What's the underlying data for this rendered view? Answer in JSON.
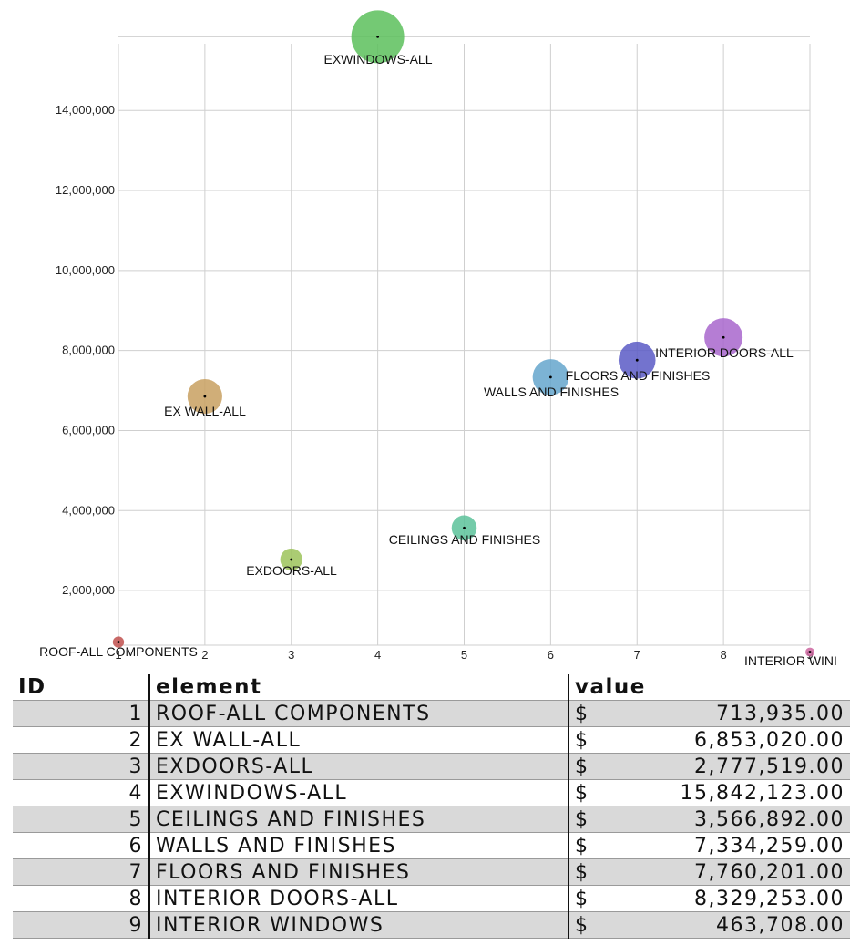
{
  "chart_data": {
    "type": "bubble",
    "x": [
      1,
      2,
      3,
      4,
      5,
      6,
      7,
      8,
      9
    ],
    "y": [
      713935,
      6853020,
      2777519,
      15842123,
      3566892,
      7334259,
      7760201,
      8329253,
      463708
    ],
    "point_labels": [
      "ROOF-ALL COMPONENTS",
      "EX WALL-ALL",
      "EXDOORS-ALL",
      "EXWINDOWS-ALL",
      "CEILINGS AND FINISHES",
      "WALLS AND FINISHES",
      "FLOORS AND FINISHES",
      "INTERIOR DOORS-ALL",
      "INTERIOR WINI"
    ],
    "colors": [
      "#c0504d",
      "#c8a060",
      "#9cc35a",
      "#5cbf5c",
      "#5cc29a",
      "#65a6cc",
      "#5a5ac6",
      "#a866cc",
      "#cc66a0"
    ],
    "xlim": [
      1,
      9
    ],
    "ylim": [
      636000,
      15850000
    ],
    "x_ticks": [
      1,
      2,
      3,
      4,
      5,
      6,
      7,
      8,
      9
    ],
    "x_tick_labels": [
      "1",
      "2",
      "3",
      "4",
      "5",
      "6",
      "7",
      "8",
      "9"
    ],
    "y_ticks": [
      2000000,
      4000000,
      6000000,
      8000000,
      10000000,
      12000000,
      14000000
    ],
    "y_tick_labels": [
      "2,000,000",
      "4,000,000",
      "6,000,000",
      "8,000,000",
      "10,000,000",
      "12,000,000",
      "14,000,000"
    ],
    "grid": true,
    "title": "",
    "xlabel": "",
    "ylabel": ""
  },
  "table": {
    "headers": [
      "ID",
      "element",
      "value"
    ],
    "currency": "$",
    "rows": [
      {
        "id": "1",
        "element": "ROOF-ALL COMPONENTS",
        "value": "713,935.00"
      },
      {
        "id": "2",
        "element": "EX WALL-ALL",
        "value": "6,853,020.00"
      },
      {
        "id": "3",
        "element": "EXDOORS-ALL",
        "value": "2,777,519.00"
      },
      {
        "id": "4",
        "element": "EXWINDOWS-ALL",
        "value": "15,842,123.00"
      },
      {
        "id": "5",
        "element": "CEILINGS AND FINISHES",
        "value": "3,566,892.00"
      },
      {
        "id": "6",
        "element": "WALLS AND FINISHES",
        "value": "7,334,259.00"
      },
      {
        "id": "7",
        "element": "FLOORS AND FINISHES",
        "value": "7,760,201.00"
      },
      {
        "id": "8",
        "element": "INTERIOR DOORS-ALL",
        "value": "8,329,253.00"
      },
      {
        "id": "9",
        "element": "INTERIOR WINDOWS",
        "value": "463,708.00"
      }
    ]
  }
}
